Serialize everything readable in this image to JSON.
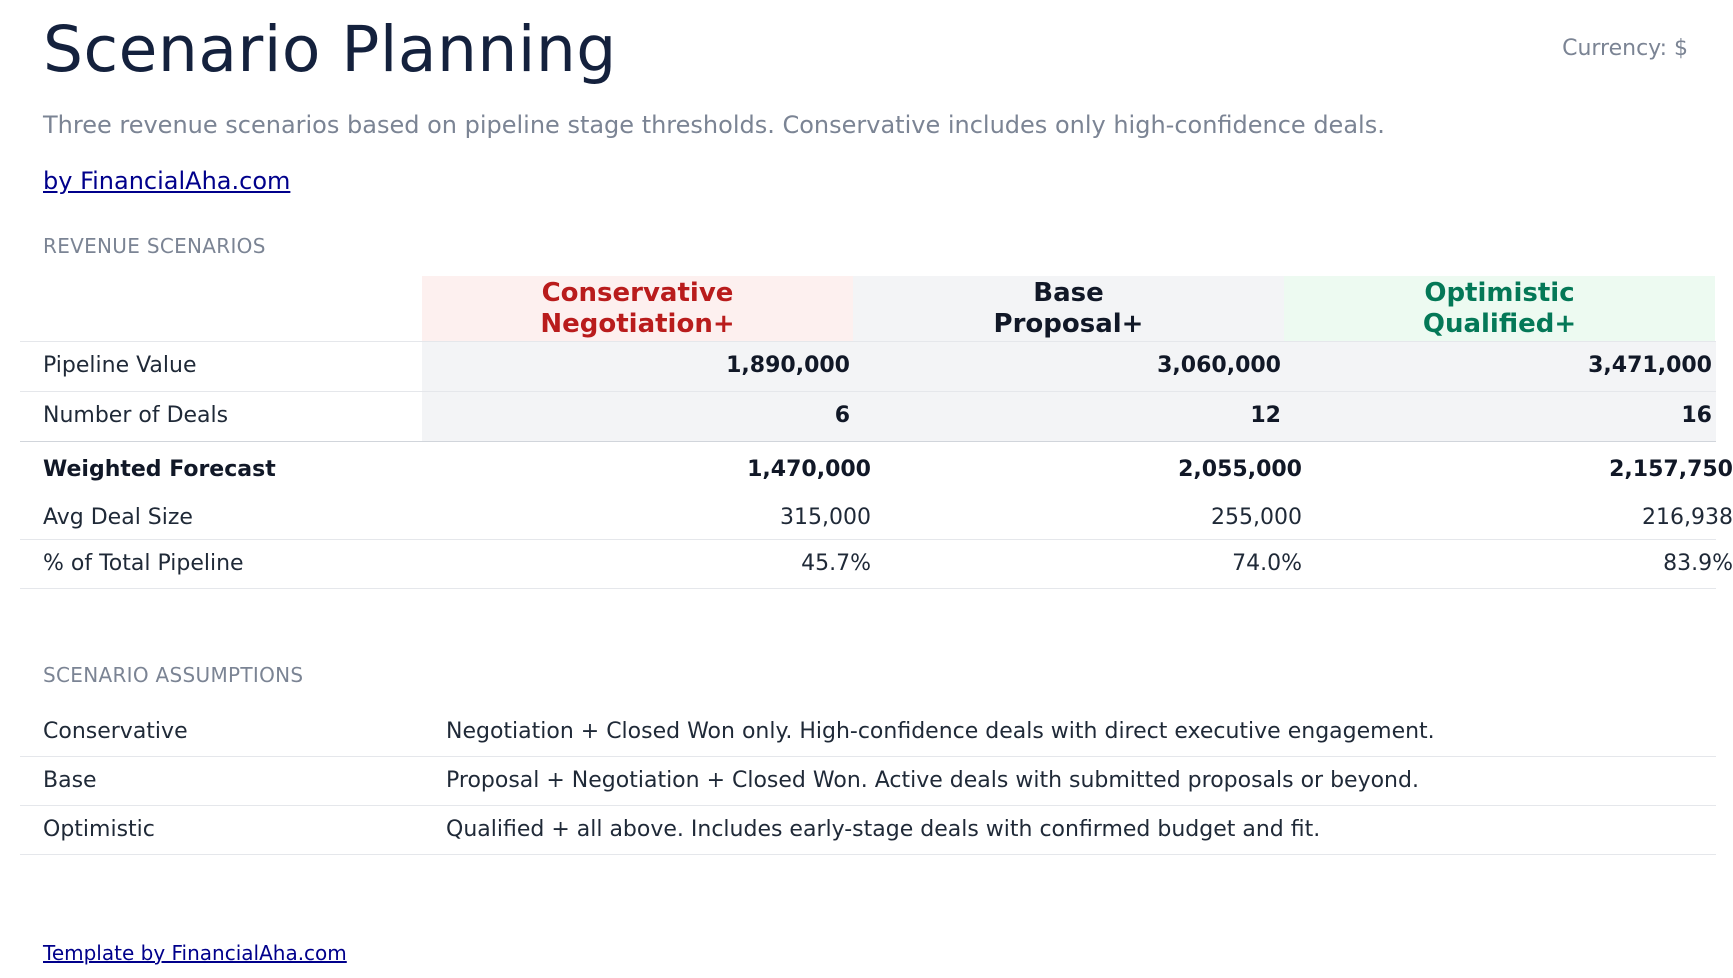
{
  "header": {
    "title": "Scenario Planning",
    "currency": "Currency: $",
    "subtitle": "Three revenue scenarios based on pipeline stage thresholds. Conservative includes only high-confidence deals.",
    "byline": "by FinancialAha.com"
  },
  "revenue": {
    "section_label": "REVENUE SCENARIOS",
    "columns": [
      {
        "name": "Conservative",
        "stage": "Negotiation+",
        "color": "#b91c1c",
        "bg": "#fdf0ef"
      },
      {
        "name": "Base",
        "stage": "Proposal+",
        "color": "#111827",
        "bg": "#f3f4f6"
      },
      {
        "name": "Optimistic",
        "stage": "Qualified+",
        "color": "#047857",
        "bg": "#edfaf1"
      }
    ],
    "rows": [
      {
        "label": "Pipeline Value",
        "values": [
          "1,890,000",
          "3,060,000",
          "3,471,000"
        ]
      },
      {
        "label": "Number of Deals",
        "values": [
          "6",
          "12",
          "16"
        ]
      },
      {
        "label": "Weighted Forecast",
        "values": [
          "1,470,000",
          "2,055,000",
          "2,157,750"
        ]
      },
      {
        "label": "Avg Deal Size",
        "values": [
          "315,000",
          "255,000",
          "216,938"
        ]
      },
      {
        "label": "% of Total Pipeline",
        "values": [
          "45.7%",
          "74.0%",
          "83.9%"
        ]
      }
    ]
  },
  "assumptions": {
    "section_label": "SCENARIO ASSUMPTIONS",
    "rows": [
      {
        "name": "Conservative",
        "desc": "Negotiation + Closed Won only. High-confidence deals with direct executive engagement."
      },
      {
        "name": "Base",
        "desc": "Proposal + Negotiation + Closed Won. Active deals with submitted proposals or beyond."
      },
      {
        "name": "Optimistic",
        "desc": "Qualified + all above. Includes early-stage deals with confirmed budget and fit."
      }
    ]
  },
  "footer": {
    "link": "Template by FinancialAha.com"
  }
}
